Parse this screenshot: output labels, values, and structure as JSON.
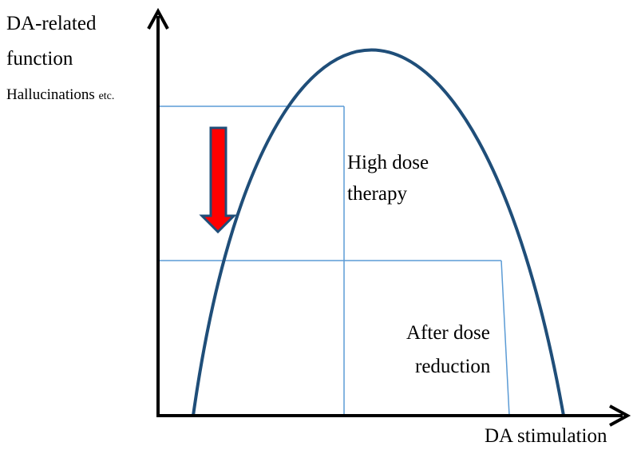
{
  "labels": {
    "y_line1": "DA-related",
    "y_line2": "function",
    "y_line3": "Hallucinations",
    "y_line3_suffix": "etc.",
    "x_axis": "DA stimulation",
    "high_line1": "High dose",
    "high_line2": "therapy",
    "after_line1": "After dose",
    "after_line2": "reduction"
  },
  "colors": {
    "axis": "#000000",
    "curve": "#1f4e79",
    "guide": "#5b9bd5",
    "arrow_fill": "#ff0000",
    "arrow_outline": "#1f4e79"
  },
  "arrow_direction": "down"
}
